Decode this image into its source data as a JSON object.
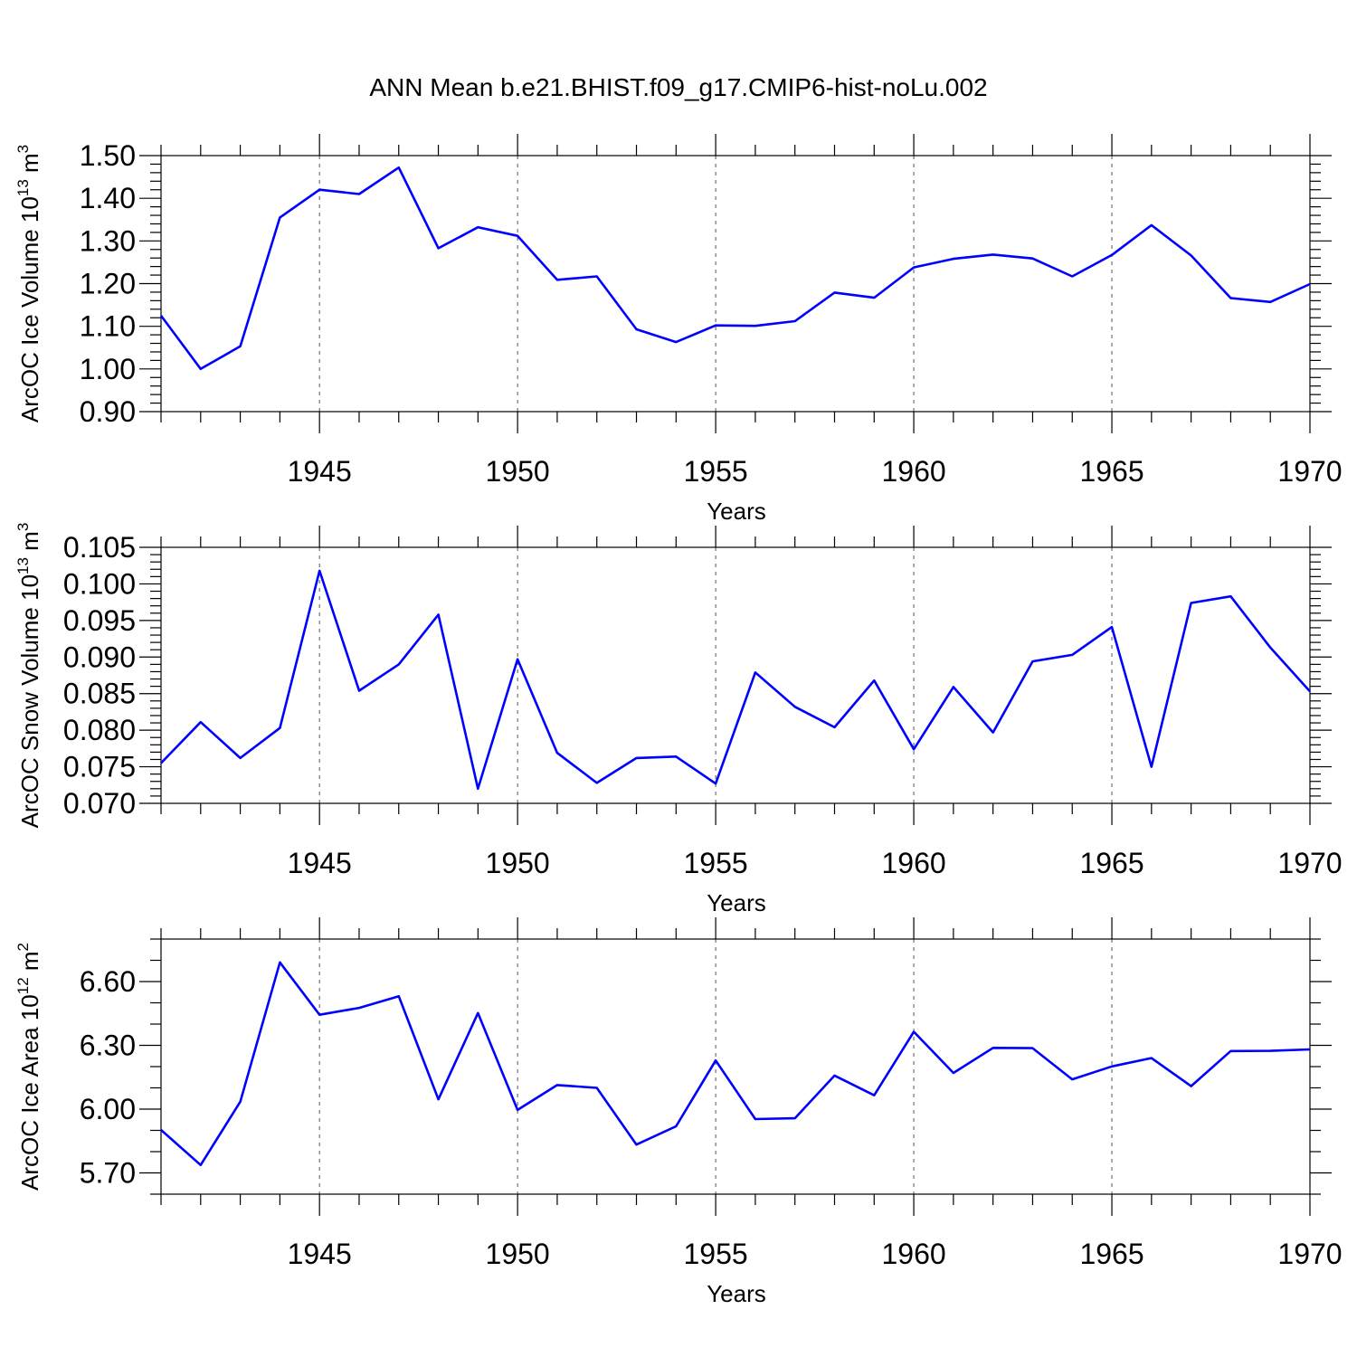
{
  "title": "ANN Mean b.e21.BHIST.f09_g17.CMIP6-hist-noLu.002",
  "colors": {
    "line": "#0000ff",
    "axis": "#000000",
    "grid": "#555555"
  },
  "chart_data": [
    {
      "type": "line",
      "title": "ANN Mean b.e21.BHIST.f09_g17.CMIP6-hist-noLu.002",
      "xlabel": "Years",
      "ylabel": "ArcOC Ice Volume 10",
      "ylabel_exp": "13",
      "ylabel_unit": " m",
      "ylabel_unit_exp": "3",
      "xlim": [
        1941,
        1970
      ],
      "ylim": [
        0.9,
        1.5
      ],
      "xticks": [
        1945,
        1950,
        1955,
        1960,
        1965,
        1970
      ],
      "xtick_labels": [
        "1945",
        "1950",
        "1955",
        "1960",
        "1965",
        "1970"
      ],
      "yticks": [
        0.9,
        1.0,
        1.1,
        1.2,
        1.3,
        1.4,
        1.5
      ],
      "ytick_labels": [
        "0.90",
        "1.00",
        "1.10",
        "1.20",
        "1.30",
        "1.40",
        "1.50"
      ],
      "y_minor_step": 0.02,
      "grid": "x-dashed",
      "x": [
        1941,
        1942,
        1943,
        1944,
        1945,
        1946,
        1947,
        1948,
        1949,
        1950,
        1951,
        1952,
        1953,
        1954,
        1955,
        1956,
        1957,
        1958,
        1959,
        1960,
        1961,
        1962,
        1963,
        1964,
        1965,
        1966,
        1967,
        1968,
        1969,
        1970
      ],
      "series": [
        {
          "name": "ArcOC Ice Volume",
          "values": [
            1.125,
            1.0,
            1.053,
            1.355,
            1.42,
            1.41,
            1.472,
            1.283,
            1.332,
            1.312,
            1.209,
            1.217,
            1.093,
            1.063,
            1.102,
            1.101,
            1.112,
            1.179,
            1.167,
            1.238,
            1.258,
            1.268,
            1.259,
            1.217,
            1.267,
            1.337,
            1.266,
            1.166,
            1.157,
            1.199
          ]
        }
      ]
    },
    {
      "type": "line",
      "xlabel": "Years",
      "ylabel": "ArcOC Snow Volume 10",
      "ylabel_exp": "13",
      "ylabel_unit": " m",
      "ylabel_unit_exp": "3",
      "xlim": [
        1941,
        1970
      ],
      "ylim": [
        0.07,
        0.105
      ],
      "xticks": [
        1945,
        1950,
        1955,
        1960,
        1965,
        1970
      ],
      "xtick_labels": [
        "1945",
        "1950",
        "1955",
        "1960",
        "1965",
        "1970"
      ],
      "yticks": [
        0.07,
        0.075,
        0.08,
        0.085,
        0.09,
        0.095,
        0.1,
        0.105
      ],
      "ytick_labels": [
        "0.070",
        "0.075",
        "0.080",
        "0.085",
        "0.090",
        "0.095",
        "0.100",
        "0.105"
      ],
      "y_minor_step": 0.001,
      "grid": "x-dashed",
      "x": [
        1941,
        1942,
        1943,
        1944,
        1945,
        1946,
        1947,
        1948,
        1949,
        1950,
        1951,
        1952,
        1953,
        1954,
        1955,
        1956,
        1957,
        1958,
        1959,
        1960,
        1961,
        1962,
        1963,
        1964,
        1965,
        1966,
        1967,
        1968,
        1969,
        1970
      ],
      "series": [
        {
          "name": "ArcOC Snow Volume",
          "values": [
            0.0755,
            0.0811,
            0.0762,
            0.0803,
            0.1018,
            0.0854,
            0.089,
            0.0958,
            0.072,
            0.0897,
            0.0769,
            0.0728,
            0.0762,
            0.0764,
            0.0727,
            0.0879,
            0.0832,
            0.0804,
            0.0868,
            0.0774,
            0.0859,
            0.0797,
            0.0894,
            0.0903,
            0.0941,
            0.075,
            0.0974,
            0.0983,
            0.0913,
            0.0853
          ]
        }
      ]
    },
    {
      "type": "line",
      "xlabel": "Years",
      "ylabel": "ArcOC Ice Area 10",
      "ylabel_exp": "12",
      "ylabel_unit": " m",
      "ylabel_unit_exp": "2",
      "xlim": [
        1941,
        1970
      ],
      "ylim": [
        5.6,
        6.8
      ],
      "xticks": [
        1945,
        1950,
        1955,
        1960,
        1965,
        1970
      ],
      "xtick_labels": [
        "1945",
        "1950",
        "1955",
        "1960",
        "1965",
        "1970"
      ],
      "yticks": [
        5.7,
        6.0,
        6.3,
        6.6
      ],
      "ytick_labels": [
        "5.70",
        "6.00",
        "6.30",
        "6.60"
      ],
      "y_minor_step": 0.1,
      "grid": "x-dashed",
      "x": [
        1941,
        1942,
        1943,
        1944,
        1945,
        1946,
        1947,
        1948,
        1949,
        1950,
        1951,
        1952,
        1953,
        1954,
        1955,
        1956,
        1957,
        1958,
        1959,
        1960,
        1961,
        1962,
        1963,
        1964,
        1965,
        1966,
        1967,
        1968,
        1969,
        1970
      ],
      "series": [
        {
          "name": "ArcOC Ice Area",
          "values": [
            5.902,
            5.737,
            6.035,
            6.69,
            6.444,
            6.476,
            6.531,
            6.046,
            6.452,
            5.996,
            6.113,
            6.1,
            5.833,
            5.919,
            6.229,
            5.953,
            5.957,
            6.158,
            6.065,
            6.364,
            6.17,
            6.288,
            6.287,
            6.14,
            6.201,
            6.24,
            6.108,
            6.273,
            6.274,
            6.281
          ]
        }
      ]
    }
  ]
}
